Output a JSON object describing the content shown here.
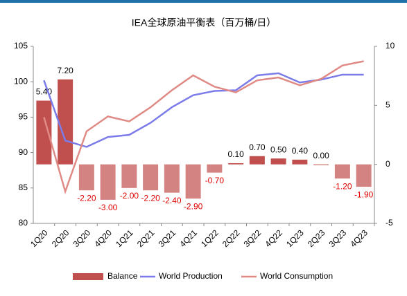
{
  "chart_data": {
    "type": "bar-line",
    "title": "IEA全球原油平衡表（百万桶/日）",
    "categories": [
      "1Q20",
      "2Q20",
      "3Q20",
      "4Q20",
      "1Q21",
      "2Q21",
      "3Q21",
      "4Q21",
      "1Q22",
      "2Q22",
      "3Q22",
      "4Q22",
      "1Q23",
      "2Q23",
      "3Q23",
      "4Q23"
    ],
    "series": [
      {
        "name": "Balance",
        "type": "bar",
        "axis": "y2",
        "color": "#c0504d",
        "values": [
          5.4,
          7.2,
          -2.2,
          -3.0,
          -2.0,
          -2.2,
          -2.4,
          -2.9,
          -0.7,
          0.1,
          0.7,
          0.5,
          0.4,
          0.0,
          -1.2,
          -1.9
        ],
        "value_labels": [
          "5.40",
          "7.20",
          "-2.20",
          "-3.00",
          "-2.00",
          "-2.20",
          "-2.40",
          "-2.90",
          "-0.70",
          "0.10",
          "0.70",
          "0.50",
          "0.40",
          "0.00",
          "-1.20",
          "-1.90"
        ]
      },
      {
        "name": "World Production",
        "type": "line",
        "color": "#7b7bea",
        "values": [
          100.2,
          91.7,
          90.8,
          92.2,
          92.5,
          94.2,
          96.4,
          98.1,
          98.7,
          98.8,
          100.9,
          101.2,
          99.9,
          100.3,
          101.0,
          101.0
        ]
      },
      {
        "name": "World Consumption",
        "type": "line",
        "color": "#e08a86",
        "values": [
          95.0,
          84.5,
          93.0,
          95.1,
          94.4,
          96.4,
          98.8,
          100.9,
          99.3,
          98.5,
          100.2,
          100.6,
          99.5,
          100.4,
          102.3,
          102.9
        ]
      }
    ],
    "ylim": [
      80,
      105
    ],
    "yticks": [
      80,
      85,
      90,
      95,
      100,
      105
    ],
    "y2lim": [
      -5,
      10
    ],
    "y2ticks": [
      -5,
      0,
      5,
      10
    ],
    "legend": "bottom"
  }
}
